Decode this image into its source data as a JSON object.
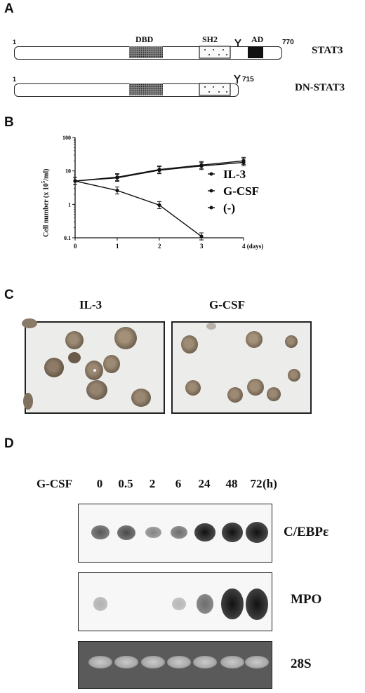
{
  "panel_a": {
    "label": "A",
    "stat3": {
      "name": "STAT3",
      "start": "1",
      "end": "770",
      "dbd": "DBD",
      "sh2": "SH2",
      "ad": "AD"
    },
    "dn_stat3": {
      "name": "DN-STAT3",
      "start": "1",
      "end": "715"
    }
  },
  "panel_b": {
    "label": "B"
  },
  "chart_data": {
    "type": "line",
    "ylabel": "Cell number (x 10⁵/ml)",
    "ylabel_text": "Cell number (x 10",
    "ylabel_sup": "5",
    "ylabel_tail": "/ml)",
    "x": [
      0,
      1,
      2,
      3,
      4
    ],
    "x_ticks": [
      "0",
      "1",
      "2",
      "3",
      "4 (days)"
    ],
    "y_scale": "log",
    "ylim": [
      0.1,
      100
    ],
    "y_ticks": [
      "0.1",
      "1",
      "10",
      "100"
    ],
    "series": [
      {
        "name": "IL-3",
        "values": [
          5,
          6.5,
          11,
          15,
          20
        ]
      },
      {
        "name": "G-CSF",
        "values": [
          5,
          6.2,
          10.5,
          14,
          18
        ]
      },
      {
        "name": "(-)",
        "values": [
          5,
          2.6,
          0.95,
          0.11,
          null
        ]
      }
    ]
  },
  "panel_c": {
    "label": "C",
    "left_title": "IL-3",
    "right_title": "G-CSF"
  },
  "panel_d": {
    "label": "D",
    "treatment": "G-CSF",
    "times": [
      "0",
      "0.5",
      "2",
      "6",
      "24",
      "48",
      "72"
    ],
    "unit": "(h)",
    "probes": [
      "C/EBPε",
      "MPO",
      "28S"
    ],
    "cebpe_intensity": [
      0.45,
      0.5,
      0.25,
      0.35,
      0.8,
      0.9,
      1.0
    ],
    "mpo_intensity": [
      0.05,
      0.0,
      0.0,
      0.03,
      0.35,
      0.95,
      1.0
    ],
    "rrna_intensity": [
      0.8,
      0.8,
      0.8,
      0.8,
      0.8,
      0.8,
      0.8
    ]
  }
}
